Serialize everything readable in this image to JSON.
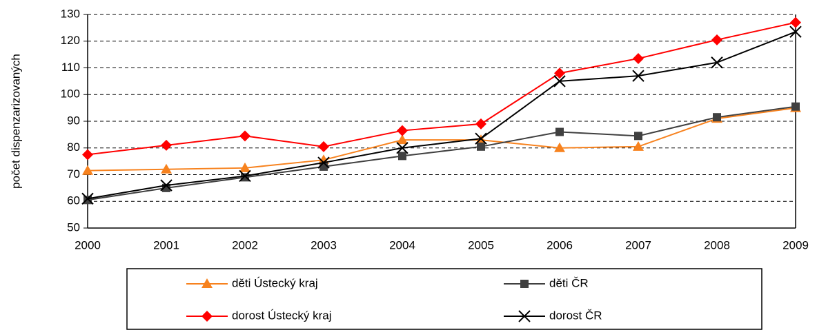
{
  "chart_data": {
    "type": "line",
    "y_label": "počet dispenzarizovaných",
    "categories": [
      "2000",
      "2001",
      "2002",
      "2003",
      "2004",
      "2005",
      "2006",
      "2007",
      "2008",
      "2009"
    ],
    "series": [
      {
        "name": "děti Ústecký kraj",
        "color": "#f7821e",
        "marker": "triangle",
        "values": [
          71.5,
          72,
          72.5,
          75.5,
          83,
          83,
          80,
          80.5,
          91,
          95
        ]
      },
      {
        "name": "děti ČR",
        "color": "#404040",
        "marker": "square",
        "values": [
          60.5,
          65,
          69,
          73,
          77,
          80.5,
          86,
          84.5,
          91.5,
          95.5
        ]
      },
      {
        "name": "dorost Ústecký kraj",
        "color": "#ff0000",
        "marker": "diamond",
        "values": [
          77.5,
          81,
          84.5,
          80.5,
          86.5,
          89,
          108,
          113.5,
          120.5,
          127
        ]
      },
      {
        "name": "dorost ČR",
        "color": "#000000",
        "marker": "x",
        "values": [
          61,
          66,
          69.5,
          74.5,
          80,
          83.5,
          105,
          107,
          112,
          123.5
        ]
      }
    ],
    "ylim": [
      50,
      130
    ],
    "yticks": [
      50,
      60,
      70,
      80,
      90,
      100,
      110,
      120,
      130
    ],
    "grid": true,
    "legend": "bottom"
  }
}
